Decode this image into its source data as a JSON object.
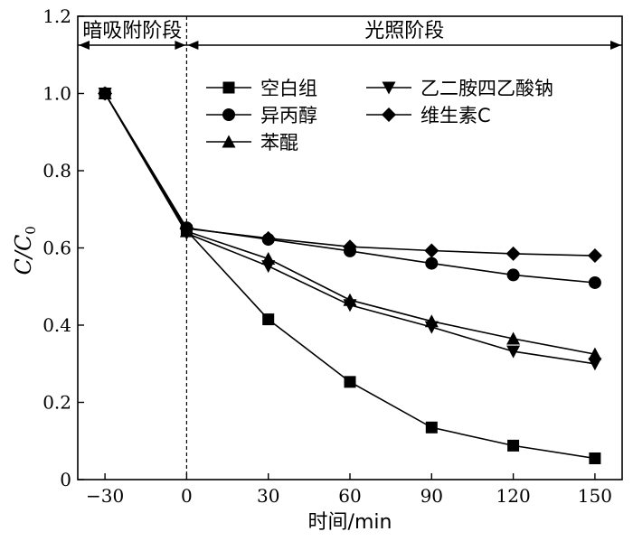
{
  "chart_data": {
    "type": "line",
    "xlabel": "时间/min",
    "ylabel": "C/C0",
    "ylabel_parts": {
      "main": "C/C",
      "sub": "0"
    },
    "xlim": [
      -40,
      160
    ],
    "ylim": [
      0,
      1.2
    ],
    "x": [
      -30,
      0,
      30,
      60,
      90,
      120,
      150
    ],
    "x_tick_labels": [
      "−30",
      "0",
      "30",
      "60",
      "90",
      "120",
      "150"
    ],
    "y_ticks": [
      0,
      0.2,
      0.4,
      0.6,
      0.8,
      1.0,
      1.2
    ],
    "y_tick_labels": [
      "0",
      "0.2",
      "0.4",
      "0.6",
      "0.8",
      "1.0",
      "1.2"
    ],
    "grid": false,
    "legend_position": "top-right",
    "phases": [
      {
        "label": "暗吸附阶段",
        "x_start": -40,
        "x_end": 0
      },
      {
        "label": "光照阶段",
        "x_start": 0,
        "x_end": 160
      }
    ],
    "divider_x": 0,
    "series": [
      {
        "name": "空白组",
        "marker": "square",
        "values": [
          1.0,
          0.645,
          0.415,
          0.253,
          0.135,
          0.088,
          0.055
        ]
      },
      {
        "name": "异丙醇",
        "marker": "circle",
        "values": [
          1.0,
          0.652,
          0.622,
          0.592,
          0.56,
          0.53,
          0.51
        ]
      },
      {
        "name": "苯醌",
        "marker": "triangle-up",
        "values": [
          1.0,
          0.643,
          0.572,
          0.465,
          0.41,
          0.365,
          0.325
        ]
      },
      {
        "name": "乙二胺四乙酸钠",
        "marker": "triangle-down",
        "values": [
          1.0,
          0.638,
          0.553,
          0.452,
          0.395,
          0.332,
          0.3
        ]
      },
      {
        "name": "维生素C",
        "marker": "diamond",
        "values": [
          1.0,
          0.65,
          0.625,
          0.603,
          0.593,
          0.585,
          0.58
        ]
      }
    ],
    "colors": {
      "ink": "#000000",
      "background": "#ffffff"
    }
  }
}
